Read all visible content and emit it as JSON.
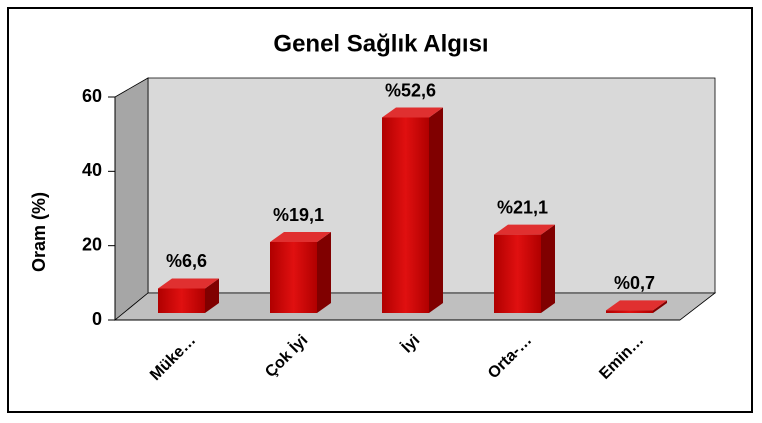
{
  "chart_data": {
    "type": "bar",
    "title": "Genel Sağlık Algısı",
    "y_label": "Oram (%)",
    "categories": [
      "Müke…",
      "Çok İyi",
      "İyi",
      "Orta-…",
      "Emin…"
    ],
    "values": [
      6.6,
      19.1,
      52.6,
      21.1,
      0.7
    ],
    "value_labels": [
      "%6,6",
      "%19,1",
      "%52,6",
      "%21,1",
      "%0,7"
    ],
    "color": "#c00000",
    "ylim": [
      0,
      60
    ],
    "yticks": [
      0,
      20,
      40,
      60
    ],
    "grid": false
  }
}
